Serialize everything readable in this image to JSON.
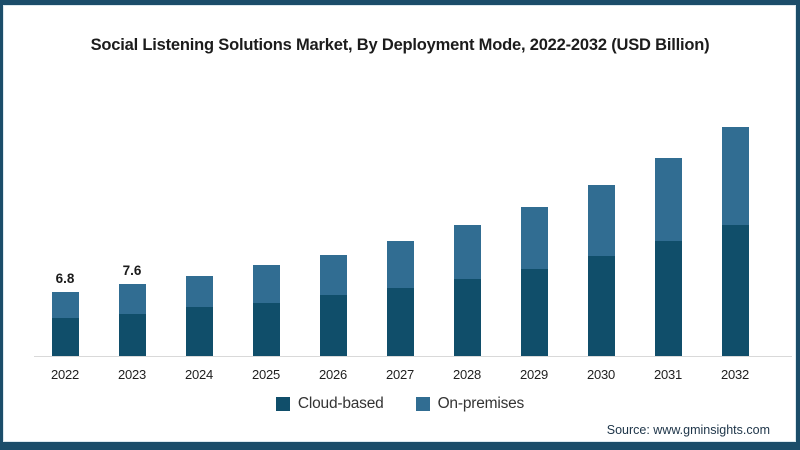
{
  "frame": {
    "border_color": "#1b4d6a",
    "background": "#ffffff"
  },
  "chart_data": {
    "type": "bar",
    "stacked": true,
    "title": "Social Listening Solutions Market, By Deployment Mode, 2022-2032 (USD Billion)",
    "categories": [
      "2022",
      "2023",
      "2024",
      "2025",
      "2026",
      "2027",
      "2028",
      "2029",
      "2030",
      "2031",
      "2032"
    ],
    "series": [
      {
        "name": "Cloud-based",
        "color": "#104e6a",
        "values": [
          4.1,
          4.5,
          5.2,
          5.7,
          6.5,
          7.2,
          8.2,
          9.2,
          10.6,
          12.2,
          13.8
        ]
      },
      {
        "name": "On-premises",
        "color": "#316d92",
        "values": [
          2.7,
          3.1,
          3.3,
          3.9,
          4.2,
          4.9,
          5.6,
          6.5,
          7.4,
          8.6,
          10.3
        ]
      }
    ],
    "totals": [
      6.8,
      7.6,
      8.5,
      9.6,
      10.7,
      12.1,
      13.8,
      15.7,
      18.0,
      20.8,
      24.1
    ],
    "value_labels": [
      {
        "category": "2022",
        "text": "6.8"
      },
      {
        "category": "2023",
        "text": "7.6"
      }
    ],
    "xlabel": "",
    "ylabel": "",
    "ylim": [
      0,
      26
    ],
    "grid": false,
    "legend_position": "bottom",
    "axis_line_color": "#d9d9d9"
  },
  "source": {
    "text": "Source: www.gminsights.com"
  }
}
